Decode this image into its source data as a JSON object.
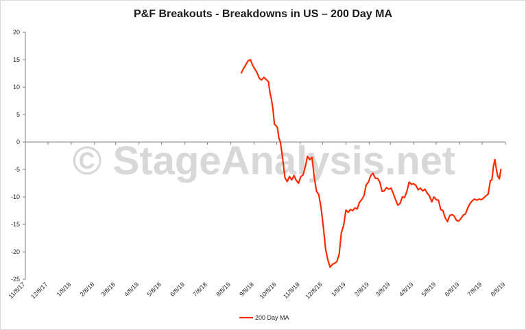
{
  "chart_data": {
    "type": "line",
    "title": "P&F Breakouts - Breakdowns in US – 200 Day MA",
    "xlabel": "",
    "ylabel": "",
    "ylim": [
      -25,
      20
    ],
    "yticks": [
      20,
      15,
      10,
      5,
      0,
      -5,
      -10,
      -15,
      -20,
      -25
    ],
    "xlim": [
      "2017-11-08",
      "2019-08-08"
    ],
    "xtick_labels": [
      "11/8/17",
      "12/8/17",
      "1/8/18",
      "2/8/18",
      "3/8/18",
      "4/8/18",
      "5/8/18",
      "6/8/18",
      "7/8/18",
      "8/8/18",
      "9/8/18",
      "10/8/18",
      "11/8/18",
      "12/8/18",
      "1/8/19",
      "2/8/19",
      "3/8/19",
      "4/8/19",
      "5/8/19",
      "6/8/19",
      "7/8/19",
      "8/8/19"
    ],
    "xticks": [
      "2017-11-08",
      "2017-12-08",
      "2018-01-08",
      "2018-02-08",
      "2018-03-08",
      "2018-04-08",
      "2018-05-08",
      "2018-06-08",
      "2018-07-08",
      "2018-08-08",
      "2018-09-08",
      "2018-10-08",
      "2018-11-08",
      "2018-12-08",
      "2019-01-08",
      "2019-02-08",
      "2019-03-08",
      "2019-04-08",
      "2019-05-08",
      "2019-06-08",
      "2019-07-08",
      "2019-08-08"
    ],
    "grid": false,
    "legend": "bottom",
    "watermark": "© StageAnalysis.net",
    "series": [
      {
        "name": "200 Day MA",
        "color": "#ff2a00",
        "points": [
          [
            "2018-08-22",
            12.6
          ],
          [
            "2018-08-25",
            13.4
          ],
          [
            "2018-08-28",
            14.1
          ],
          [
            "2018-08-31",
            14.8
          ],
          [
            "2018-09-03",
            15.0
          ],
          [
            "2018-09-06",
            14.0
          ],
          [
            "2018-09-09",
            13.3
          ],
          [
            "2018-09-12",
            12.6
          ],
          [
            "2018-09-15",
            11.6
          ],
          [
            "2018-09-18",
            11.3
          ],
          [
            "2018-09-21",
            11.8
          ],
          [
            "2018-09-24",
            11.4
          ],
          [
            "2018-09-27",
            11.0
          ],
          [
            "2018-09-29",
            9.0
          ],
          [
            "2018-10-01",
            7.8
          ],
          [
            "2018-10-03",
            6.0
          ],
          [
            "2018-10-05",
            3.2
          ],
          [
            "2018-10-07",
            3.0
          ],
          [
            "2018-10-09",
            2.6
          ],
          [
            "2018-10-11",
            0.7
          ],
          [
            "2018-10-13",
            0.0
          ],
          [
            "2018-10-16",
            -3.0
          ],
          [
            "2018-10-19",
            -6.5
          ],
          [
            "2018-10-22",
            -7.2
          ],
          [
            "2018-10-25",
            -6.3
          ],
          [
            "2018-10-28",
            -6.9
          ],
          [
            "2018-10-31",
            -6.1
          ],
          [
            "2018-11-03",
            -7.0
          ],
          [
            "2018-11-06",
            -7.5
          ],
          [
            "2018-11-09",
            -6.3
          ],
          [
            "2018-11-12",
            -6.0
          ],
          [
            "2018-11-15",
            -4.5
          ],
          [
            "2018-11-18",
            -2.6
          ],
          [
            "2018-11-21",
            -3.2
          ],
          [
            "2018-11-24",
            -2.8
          ],
          [
            "2018-11-27",
            -6.5
          ],
          [
            "2018-11-30",
            -9.0
          ],
          [
            "2018-12-03",
            -9.6
          ],
          [
            "2018-12-06",
            -12.0
          ],
          [
            "2018-12-09",
            -15.5
          ],
          [
            "2018-12-12",
            -19.5
          ],
          [
            "2018-12-15",
            -21.5
          ],
          [
            "2018-12-18",
            -22.8
          ],
          [
            "2018-12-21",
            -22.3
          ],
          [
            "2018-12-24",
            -22.1
          ],
          [
            "2018-12-27",
            -21.8
          ],
          [
            "2018-12-30",
            -20.5
          ],
          [
            "2019-01-02",
            -16.5
          ],
          [
            "2019-01-05",
            -15.2
          ],
          [
            "2019-01-08",
            -12.4
          ],
          [
            "2019-01-11",
            -12.8
          ],
          [
            "2019-01-14",
            -12.3
          ],
          [
            "2019-01-17",
            -12.5
          ],
          [
            "2019-01-20",
            -12.0
          ],
          [
            "2019-01-23",
            -12.2
          ],
          [
            "2019-01-26",
            -11.0
          ],
          [
            "2019-01-29",
            -10.5
          ],
          [
            "2019-02-01",
            -9.8
          ],
          [
            "2019-02-04",
            -7.8
          ],
          [
            "2019-02-07",
            -7.3
          ],
          [
            "2019-02-10",
            -6.1
          ],
          [
            "2019-02-13",
            -5.7
          ],
          [
            "2019-02-16",
            -6.6
          ],
          [
            "2019-02-19",
            -6.6
          ],
          [
            "2019-02-22",
            -7.3
          ],
          [
            "2019-02-25",
            -9.0
          ],
          [
            "2019-02-28",
            -8.9
          ],
          [
            "2019-03-03",
            -8.3
          ],
          [
            "2019-03-06",
            -8.6
          ],
          [
            "2019-03-09",
            -8.4
          ],
          [
            "2019-03-12",
            -9.4
          ],
          [
            "2019-03-15",
            -10.5
          ],
          [
            "2019-03-18",
            -11.5
          ],
          [
            "2019-03-21",
            -11.2
          ],
          [
            "2019-03-24",
            -10.0
          ],
          [
            "2019-03-27",
            -10.1
          ],
          [
            "2019-03-30",
            -9.0
          ],
          [
            "2019-04-02",
            -7.3
          ],
          [
            "2019-04-05",
            -7.7
          ],
          [
            "2019-04-08",
            -7.6
          ],
          [
            "2019-04-11",
            -7.9
          ],
          [
            "2019-04-14",
            -8.7
          ],
          [
            "2019-04-17",
            -8.4
          ],
          [
            "2019-04-20",
            -8.9
          ],
          [
            "2019-04-23",
            -8.6
          ],
          [
            "2019-04-26",
            -9.3
          ],
          [
            "2019-04-29",
            -9.8
          ],
          [
            "2019-05-02",
            -10.9
          ],
          [
            "2019-05-05",
            -10.0
          ],
          [
            "2019-05-08",
            -10.5
          ],
          [
            "2019-05-11",
            -10.6
          ],
          [
            "2019-05-14",
            -12.3
          ],
          [
            "2019-05-17",
            -12.5
          ],
          [
            "2019-05-20",
            -13.8
          ],
          [
            "2019-05-23",
            -14.5
          ],
          [
            "2019-05-26",
            -13.4
          ],
          [
            "2019-05-29",
            -13.2
          ],
          [
            "2019-06-01",
            -13.5
          ],
          [
            "2019-06-04",
            -14.3
          ],
          [
            "2019-06-07",
            -14.4
          ],
          [
            "2019-06-10",
            -13.9
          ],
          [
            "2019-06-13",
            -13.3
          ],
          [
            "2019-06-16",
            -13.1
          ],
          [
            "2019-06-19",
            -12.0
          ],
          [
            "2019-06-22",
            -11.2
          ],
          [
            "2019-06-25",
            -10.7
          ],
          [
            "2019-06-28",
            -10.4
          ],
          [
            "2019-07-01",
            -10.6
          ],
          [
            "2019-07-04",
            -10.4
          ],
          [
            "2019-07-07",
            -10.5
          ],
          [
            "2019-07-10",
            -10.2
          ],
          [
            "2019-07-13",
            -9.8
          ],
          [
            "2019-07-16",
            -9.5
          ],
          [
            "2019-07-19",
            -7.0
          ],
          [
            "2019-07-21",
            -6.9
          ],
          [
            "2019-07-23",
            -4.5
          ],
          [
            "2019-07-25",
            -3.2
          ],
          [
            "2019-07-27",
            -5.0
          ],
          [
            "2019-07-29",
            -6.3
          ],
          [
            "2019-07-31",
            -6.7
          ],
          [
            "2019-08-02",
            -5.0
          ]
        ]
      }
    ]
  }
}
